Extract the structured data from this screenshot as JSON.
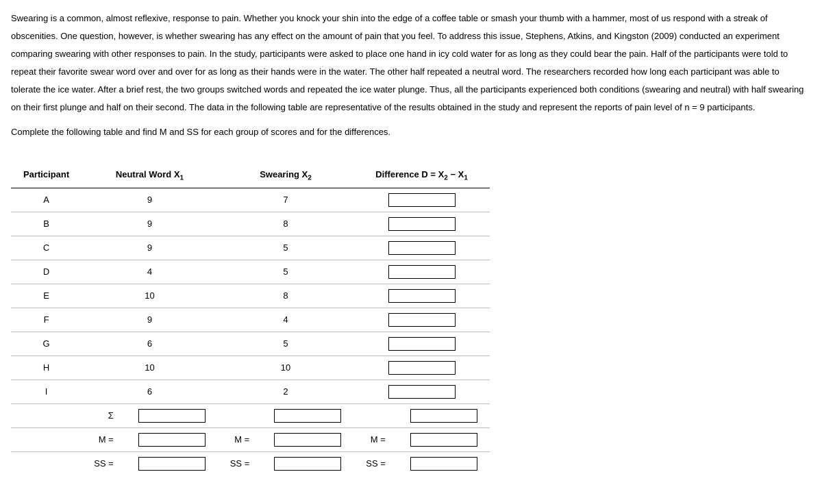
{
  "paragraph": "Swearing is a common, almost reflexive, response to pain. Whether you knock your shin into the edge of a coffee table or smash your thumb with a hammer, most of us respond with a streak of obscenities. One question, however, is whether swearing has any effect on the amount of pain that you feel. To address this issue, Stephens, Atkins, and Kingston (2009) conducted an experiment comparing swearing with other responses to pain. In the study, participants were asked to place one hand in icy cold water for as long as they could bear the pain. Half of the participants were told to repeat their favorite swear word over and over for as long as their hands were in the water. The other half repeated a neutral word. The researchers recorded how long each participant was able to tolerate the ice water. After a brief rest, the two groups switched words and repeated the ice water plunge. Thus, all the participants experienced both conditions (swearing and neutral) with half swearing on their first plunge and half on their second. The data in the following table are representative of the results obtained in the study and represent the reports of pain level of n = 9 participants.",
  "instruction": "Complete the following table and find M and SS for each group of scores and for the differences.",
  "headers": {
    "participant": "Participant",
    "neutral_pre": "Neutral Word X",
    "neutral_sub": "1",
    "swearing_pre": "Swearing X",
    "swearing_sub": "2",
    "diff_pre": "Difference D = X",
    "diff_sub2": "2",
    "diff_mid": " − X",
    "diff_sub1": "1"
  },
  "rows": [
    {
      "p": "A",
      "x1": "9",
      "x2": "7"
    },
    {
      "p": "B",
      "x1": "9",
      "x2": "8"
    },
    {
      "p": "C",
      "x1": "9",
      "x2": "5"
    },
    {
      "p": "D",
      "x1": "4",
      "x2": "5"
    },
    {
      "p": "E",
      "x1": "10",
      "x2": "8"
    },
    {
      "p": "F",
      "x1": "9",
      "x2": "4"
    },
    {
      "p": "G",
      "x1": "6",
      "x2": "5"
    },
    {
      "p": "H",
      "x1": "10",
      "x2": "10"
    },
    {
      "p": "I",
      "x1": "6",
      "x2": "2"
    }
  ],
  "labels": {
    "sigma": "Σ",
    "m": "M =",
    "ss": "SS ="
  }
}
